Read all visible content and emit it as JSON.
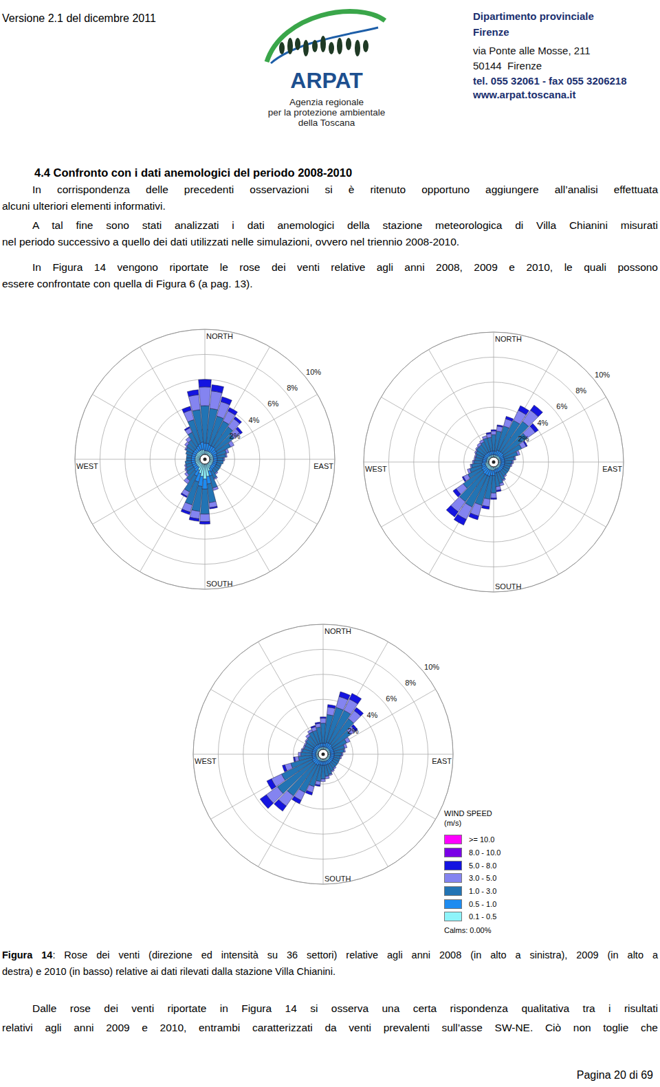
{
  "header": {
    "version": "Versione 2.1 del dicembre 2011",
    "logo": {
      "name": "ARPAT",
      "lines": [
        "Agenzia regionale",
        "per la protezione ambientale",
        "della Toscana"
      ]
    },
    "office": [
      "Dipartimento provinciale",
      "Firenze",
      "via Ponte alle Mosse, 211",
      "50144  Firenze",
      "tel. 055 32061 - fax 055 3206218",
      "www.arpat.toscana.it"
    ]
  },
  "heading": "4.4 Confronto con i dati anemologici del periodo 2008-2010",
  "paragraphs": [
    [
      "In corrispondenza delle precedenti osservazioni si è ritenuto opportuno aggiungere all’analisi effettuata",
      "alcuni ulteriori elementi informativi."
    ],
    [
      "A tal fine sono stati analizzati i dati anemologici della stazione meteorologica di Villa Chianini misurati",
      "nel periodo successivo a quello dei dati utilizzati nelle simulazioni, ovvero nel triennio 2008-2010."
    ],
    [
      "In Figura 14 vengono riportate le rose dei venti relative agli anni 2008, 2009 e 2010, le quali possono",
      "essere confrontate con quella di Figura 6 (a pag. 13)."
    ]
  ],
  "legend": {
    "title": "WIND SPEED",
    "unit": "(m/s)",
    "items": [
      {
        "label": ">= 10.0",
        "color": "#ff00ff"
      },
      {
        "label": "8.0 - 10.0",
        "color": "#7a00e6"
      },
      {
        "label": "5.0 - 8.0",
        "color": "#1414e0"
      },
      {
        "label": "3.0 - 5.0",
        "color": "#8484f0"
      },
      {
        "label": "1.0 - 3.0",
        "color": "#2274b4"
      },
      {
        "label": "0.5 - 1.0",
        "color": "#1e8cf0"
      },
      {
        "label": "0.1 - 0.5",
        "color": "#8ef4fa"
      }
    ],
    "calms": "Calms: 0.00%"
  },
  "chart_data": [
    {
      "type": "wind_rose",
      "stacked": true,
      "categories": [
        "NORTH",
        null,
        null,
        null,
        null,
        null,
        null,
        null,
        null,
        "EAST",
        null,
        null,
        null,
        null,
        null,
        null,
        null,
        null,
        "SOUTH",
        null,
        null,
        null,
        null,
        null,
        null,
        null,
        null,
        "WEST",
        null,
        null,
        null,
        null,
        null,
        null,
        null,
        null
      ],
      "ylim": [
        0,
        10
      ],
      "yticks": [
        {
          "value": 2,
          "label": "2%"
        },
        {
          "value": 4,
          "label": "4%"
        },
        {
          "value": 6,
          "label": "6%"
        },
        {
          "value": 8,
          "label": "8%"
        },
        {
          "value": 10,
          "label": "10%"
        }
      ],
      "series": [
        {
          "name": "0.1 - 0.5",
          "values": [
            0.3,
            0.3,
            0.3,
            0.3,
            0.3,
            0.3,
            0.3,
            0.3,
            0.3,
            0.3,
            0.3,
            0.3,
            0.3,
            0.3,
            0.3,
            0.4,
            0.6,
            1.0,
            1.2,
            1.0,
            0.8,
            0.6,
            0.4,
            0.4,
            0.4,
            0.4,
            0.4,
            0.4,
            0.4,
            0.4,
            0.4,
            0.4,
            0.4,
            0.4,
            0.4,
            0.4
          ]
        },
        {
          "name": "0.5 - 1.0",
          "values": [
            0.6,
            0.6,
            0.5,
            0.5,
            0.5,
            0.4,
            0.4,
            0.3,
            0.3,
            0.3,
            0.3,
            0.3,
            0.3,
            0.3,
            0.3,
            0.3,
            0.4,
            0.6,
            0.8,
            0.8,
            0.7,
            0.5,
            0.4,
            0.3,
            0.3,
            0.3,
            0.3,
            0.3,
            0.3,
            0.3,
            0.3,
            0.3,
            0.3,
            0.4,
            0.5,
            0.6
          ]
        },
        {
          "name": "1.0 - 3.0",
          "values": [
            3.0,
            2.8,
            2.4,
            2.2,
            2.0,
            1.8,
            1.2,
            0.8,
            0.7,
            0.5,
            0.5,
            0.4,
            0.4,
            0.4,
            0.4,
            0.6,
            1.0,
            1.5,
            2.0,
            2.0,
            1.9,
            1.4,
            0.9,
            0.7,
            0.6,
            0.5,
            0.5,
            0.4,
            0.4,
            0.5,
            0.6,
            0.7,
            0.8,
            1.2,
            2.0,
            2.6
          ]
        },
        {
          "name": "3.0 - 5.0",
          "values": [
            1.5,
            1.4,
            1.2,
            0.9,
            0.8,
            0.6,
            0.3,
            0.2,
            0.1,
            0.1,
            0,
            0,
            0,
            0,
            0.1,
            0.1,
            0.2,
            0.4,
            0.6,
            0.6,
            0.6,
            0.4,
            0.3,
            0.2,
            0.1,
            0.1,
            0,
            0,
            0,
            0,
            0.1,
            0.2,
            0.3,
            0.4,
            0.8,
            1.2
          ]
        },
        {
          "name": "5.0 - 8.0",
          "values": [
            0.6,
            0.5,
            0.4,
            0.3,
            0.2,
            0.2,
            0,
            0,
            0,
            0,
            0,
            0,
            0,
            0,
            0,
            0,
            0,
            0.1,
            0.2,
            0.2,
            0.2,
            0.1,
            0,
            0,
            0,
            0,
            0,
            0,
            0,
            0,
            0,
            0,
            0,
            0.1,
            0.3,
            0.4
          ]
        },
        {
          "name": "8.0 - 10.0",
          "values": [
            0,
            0,
            0,
            0,
            0,
            0,
            0,
            0,
            0,
            0,
            0,
            0,
            0,
            0,
            0,
            0,
            0,
            0,
            0,
            0,
            0,
            0,
            0,
            0,
            0,
            0,
            0,
            0,
            0,
            0,
            0,
            0,
            0,
            0,
            0,
            0
          ]
        },
        {
          "name": ">= 10.0",
          "values": [
            0,
            0,
            0,
            0,
            0,
            0,
            0,
            0,
            0,
            0,
            0,
            0,
            0,
            0,
            0,
            0,
            0,
            0,
            0,
            0,
            0,
            0,
            0,
            0,
            0,
            0,
            0,
            0,
            0,
            0,
            0,
            0,
            0,
            0,
            0,
            0
          ]
        }
      ]
    },
    {
      "type": "wind_rose",
      "stacked": true,
      "categories": [
        "NORTH",
        null,
        null,
        null,
        null,
        null,
        null,
        null,
        null,
        "EAST",
        null,
        null,
        null,
        null,
        null,
        null,
        null,
        null,
        "SOUTH",
        null,
        null,
        null,
        null,
        null,
        null,
        null,
        null,
        "WEST",
        null,
        null,
        null,
        null,
        null,
        null,
        null,
        null
      ],
      "ylim": [
        0,
        10
      ],
      "yticks": [
        {
          "value": 2,
          "label": "2%"
        },
        {
          "value": 4,
          "label": "4%"
        },
        {
          "value": 6,
          "label": "6%"
        },
        {
          "value": 8,
          "label": "8%"
        },
        {
          "value": 10,
          "label": "10%"
        }
      ],
      "series": [
        {
          "name": "0.1 - 0.5",
          "values": [
            0.2,
            0.2,
            0.2,
            0.2,
            0.2,
            0.2,
            0.2,
            0.2,
            0.2,
            0.2,
            0.2,
            0.2,
            0.2,
            0.2,
            0.2,
            0.2,
            0.2,
            0.2,
            0.3,
            0.3,
            0.3,
            0.3,
            0.3,
            0.3,
            0.3,
            0.3,
            0.3,
            0.2,
            0.2,
            0.2,
            0.2,
            0.2,
            0.2,
            0.2,
            0.2,
            0.2
          ]
        },
        {
          "name": "0.5 - 1.0",
          "values": [
            0.3,
            0.3,
            0.4,
            0.4,
            0.4,
            0.4,
            0.3,
            0.3,
            0.3,
            0.3,
            0.3,
            0.3,
            0.3,
            0.3,
            0.3,
            0.3,
            0.3,
            0.3,
            0.4,
            0.4,
            0.5,
            0.5,
            0.5,
            0.4,
            0.4,
            0.3,
            0.3,
            0.3,
            0.3,
            0.3,
            0.3,
            0.3,
            0.3,
            0.3,
            0.3,
            0.3
          ]
        },
        {
          "name": "1.0 - 3.0",
          "values": [
            1.3,
            1.6,
            2.0,
            2.7,
            3.0,
            2.3,
            1.6,
            1.1,
            0.8,
            0.6,
            0.5,
            0.5,
            0.5,
            0.5,
            0.5,
            0.7,
            0.9,
            1.1,
            1.4,
            1.9,
            2.4,
            2.8,
            2.7,
            1.9,
            1.2,
            1.0,
            0.8,
            0.7,
            0.6,
            0.6,
            0.7,
            0.8,
            0.8,
            0.9,
            1.1,
            1.1
          ]
        },
        {
          "name": "3.0 - 5.0",
          "values": [
            0.3,
            0.4,
            0.6,
            0.9,
            1.1,
            0.8,
            0.4,
            0.2,
            0.1,
            0.1,
            0.1,
            0,
            0,
            0,
            0.1,
            0.1,
            0.2,
            0.3,
            0.4,
            0.6,
            0.9,
            1.1,
            1.0,
            0.7,
            0.4,
            0.2,
            0.1,
            0.1,
            0.1,
            0.1,
            0.1,
            0.1,
            0.2,
            0.2,
            0.2,
            0.3
          ]
        },
        {
          "name": "5.0 - 8.0",
          "values": [
            0.1,
            0.1,
            0.2,
            0.4,
            0.5,
            0.3,
            0.1,
            0,
            0,
            0,
            0,
            0,
            0,
            0,
            0,
            0,
            0,
            0.1,
            0.1,
            0.2,
            0.3,
            0.5,
            0.5,
            0.3,
            0.1,
            0,
            0,
            0,
            0,
            0,
            0,
            0,
            0,
            0,
            0,
            0.1
          ]
        },
        {
          "name": "8.0 - 10.0",
          "values": [
            0,
            0,
            0,
            0,
            0,
            0,
            0,
            0,
            0,
            0,
            0,
            0,
            0,
            0,
            0,
            0,
            0,
            0,
            0,
            0,
            0,
            0,
            0,
            0,
            0,
            0,
            0,
            0,
            0,
            0,
            0,
            0,
            0,
            0,
            0,
            0
          ]
        },
        {
          "name": ">= 10.0",
          "values": [
            0,
            0,
            0,
            0,
            0,
            0,
            0,
            0,
            0,
            0,
            0,
            0,
            0,
            0,
            0,
            0,
            0,
            0,
            0,
            0,
            0,
            0,
            0,
            0,
            0,
            0,
            0,
            0,
            0,
            0,
            0,
            0,
            0,
            0,
            0,
            0
          ]
        }
      ]
    },
    {
      "type": "wind_rose",
      "stacked": true,
      "categories": [
        "NORTH",
        null,
        null,
        null,
        null,
        null,
        null,
        null,
        null,
        "EAST",
        null,
        null,
        null,
        null,
        null,
        null,
        null,
        null,
        "SOUTH",
        null,
        null,
        null,
        null,
        null,
        null,
        null,
        null,
        "WEST",
        null,
        null,
        null,
        null,
        null,
        null,
        null,
        null
      ],
      "ylim": [
        0,
        10
      ],
      "yticks": [
        {
          "value": 2,
          "label": "2%"
        },
        {
          "value": 4,
          "label": "4%"
        },
        {
          "value": 6,
          "label": "6%"
        },
        {
          "value": 8,
          "label": "8%"
        },
        {
          "value": 10,
          "label": "10%"
        }
      ],
      "series": [
        {
          "name": "0.1 - 0.5",
          "values": [
            0.2,
            0.2,
            0.2,
            0.2,
            0.2,
            0.2,
            0.2,
            0.2,
            0.2,
            0.2,
            0.2,
            0.2,
            0.2,
            0.2,
            0.2,
            0.2,
            0.2,
            0.2,
            0.2,
            0.2,
            0.2,
            0.2,
            0.2,
            0.2,
            0.2,
            0.2,
            0.2,
            0.2,
            0.2,
            0.2,
            0.2,
            0.2,
            0.2,
            0.2,
            0.2,
            0.2
          ]
        },
        {
          "name": "0.5 - 1.0",
          "values": [
            0.3,
            0.3,
            0.4,
            0.4,
            0.4,
            0.3,
            0.3,
            0.3,
            0.3,
            0.3,
            0.3,
            0.3,
            0.3,
            0.3,
            0.3,
            0.3,
            0.3,
            0.3,
            0.3,
            0.3,
            0.3,
            0.4,
            0.4,
            0.4,
            0.4,
            0.3,
            0.3,
            0.3,
            0.3,
            0.3,
            0.3,
            0.3,
            0.3,
            0.3,
            0.3,
            0.3
          ]
        },
        {
          "name": "1.0 - 3.0",
          "values": [
            1.6,
            2.3,
            2.9,
            2.9,
            2.5,
            1.8,
            1.2,
            0.9,
            0.8,
            0.6,
            0.5,
            0.5,
            0.5,
            0.5,
            0.5,
            0.6,
            0.8,
            0.9,
            1.1,
            1.3,
            1.8,
            2.4,
            3.1,
            3.5,
            2.7,
            1.8,
            1.1,
            0.9,
            0.8,
            0.7,
            0.7,
            0.8,
            0.9,
            1.1,
            1.1,
            1.3
          ]
        },
        {
          "name": "3.0 - 5.0",
          "values": [
            0.4,
            0.6,
            0.9,
            1.0,
            0.8,
            0.5,
            0.3,
            0.2,
            0.1,
            0.1,
            0.1,
            0,
            0,
            0,
            0.1,
            0.1,
            0.1,
            0.2,
            0.2,
            0.3,
            0.5,
            0.7,
            1.0,
            1.1,
            0.9,
            0.5,
            0.3,
            0.2,
            0.1,
            0.1,
            0.1,
            0.1,
            0.2,
            0.2,
            0.3,
            0.3
          ]
        },
        {
          "name": "5.0 - 8.0",
          "values": [
            0.1,
            0.2,
            0.4,
            0.5,
            0.3,
            0.2,
            0,
            0,
            0,
            0,
            0,
            0,
            0,
            0,
            0,
            0,
            0,
            0,
            0,
            0.1,
            0.2,
            0.3,
            0.5,
            0.6,
            0.4,
            0.2,
            0.1,
            0,
            0,
            0,
            0,
            0,
            0,
            0,
            0.1,
            0.1
          ]
        },
        {
          "name": "8.0 - 10.0",
          "values": [
            0,
            0,
            0,
            0,
            0,
            0,
            0,
            0,
            0,
            0,
            0,
            0,
            0,
            0,
            0,
            0,
            0,
            0,
            0,
            0,
            0,
            0,
            0,
            0,
            0,
            0,
            0,
            0,
            0,
            0,
            0,
            0,
            0,
            0,
            0,
            0
          ]
        },
        {
          "name": ">= 10.0",
          "values": [
            0,
            0,
            0,
            0,
            0,
            0,
            0,
            0,
            0,
            0,
            0,
            0,
            0,
            0,
            0,
            0,
            0,
            0,
            0,
            0,
            0,
            0,
            0,
            0,
            0,
            0,
            0,
            0,
            0,
            0,
            0,
            0,
            0,
            0,
            0,
            0
          ]
        }
      ]
    }
  ],
  "caption": {
    "label": "Figura 14",
    "lines": [
      ": Rose dei venti (direzione ed intensità su 36 settori) relative agli anni 2008 (in alto a sinistra), 2009 (in alto a",
      "destra) e 2010 (in basso) relative ai dati rilevati dalla stazione Villa Chianini."
    ]
  },
  "closing": [
    "Dalle rose dei venti riportate in Figura 14 si osserva una certa rispondenza qualitativa tra i risultati",
    "relativi agli anni 2009 e 2010, entrambi caratterizzati da venti prevalenti sull’asse SW-NE. Ciò non toglie che"
  ],
  "footer": "Pagina 20 di 69"
}
